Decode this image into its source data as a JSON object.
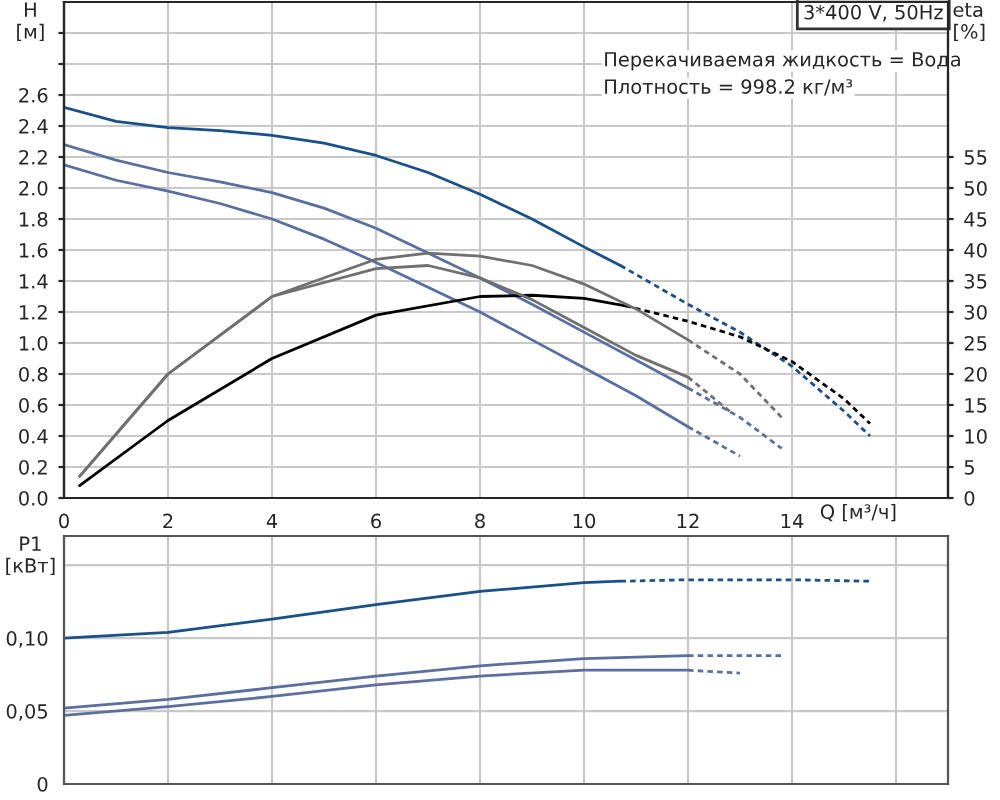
{
  "chart_data": [
    {
      "type": "line",
      "title": "3*400 V, 50Hz",
      "xlabel": "Q [м³/ч]",
      "ylabel": "H\n[м]",
      "y2label": "eta\n[%]",
      "annotations": [
        "Перекачиваемая жидкость = Вода",
        "Плотность = 998.2 кг/м³"
      ],
      "xlim": [
        0,
        17
      ],
      "xticks": [
        0,
        2,
        4,
        6,
        8,
        10,
        12,
        14,
        {
          "value": 16,
          "label": null
        }
      ],
      "ylim": [
        0,
        3.2
      ],
      "yticks": [
        {
          "value": 0,
          "label": "0.0"
        },
        0.2,
        0.4,
        0.6,
        0.8,
        {
          "value": 1,
          "label": "1.0"
        },
        1.2,
        1.4,
        1.6,
        1.8,
        {
          "value": 2,
          "label": "2.0"
        },
        2.2,
        2.4,
        2.6,
        {
          "value": 2.8,
          "label": null
        },
        {
          "value": 3,
          "label": null
        }
      ],
      "y2lim": [
        0,
        80
      ],
      "y2ticks": [
        0,
        5,
        10,
        15,
        20,
        25,
        30,
        35,
        40,
        45,
        50,
        55
      ],
      "grid": true,
      "series": [
        {
          "color": "#1a4f8a",
          "line_style": "solid",
          "x": [
            0,
            1,
            2,
            3,
            4,
            5,
            6,
            7,
            8,
            9,
            10,
            10.7
          ],
          "values": [
            2.52,
            2.43,
            2.39,
            2.37,
            2.34,
            2.29,
            2.21,
            2.1,
            1.96,
            1.8,
            1.62,
            1.5
          ]
        },
        {
          "color": "#1a4f8a",
          "line_style": "dotted",
          "x": [
            10.7,
            12,
            13,
            14,
            15,
            15.5
          ],
          "values": [
            1.5,
            1.25,
            1.07,
            0.85,
            0.56,
            0.4
          ]
        },
        {
          "color": "#5a6fa0",
          "line_style": "solid",
          "x": [
            0,
            1,
            2,
            3,
            4,
            5,
            6,
            7,
            8,
            9,
            10,
            11,
            12
          ],
          "values": [
            2.28,
            2.18,
            2.1,
            2.04,
            1.97,
            1.87,
            1.74,
            1.58,
            1.42,
            1.25,
            1.07,
            0.89,
            0.71
          ]
        },
        {
          "color": "#5a6fa0",
          "line_style": "dotted",
          "x": [
            12,
            13,
            13.8
          ],
          "values": [
            0.71,
            0.52,
            0.32
          ]
        },
        {
          "color": "#5a6fa0",
          "line_style": "solid",
          "x": [
            0,
            1,
            2,
            3,
            4,
            5,
            6,
            7,
            8,
            9,
            10,
            11,
            12
          ],
          "values": [
            2.15,
            2.05,
            1.98,
            1.9,
            1.8,
            1.67,
            1.52,
            1.36,
            1.2,
            1.02,
            0.84,
            0.66,
            0.46
          ]
        },
        {
          "color": "#5a6fa0",
          "line_style": "dotted",
          "x": [
            12,
            13
          ],
          "values": [
            0.46,
            0.27
          ]
        },
        {
          "color": "#000000",
          "axis": "y2",
          "line_style": "solid",
          "x": [
            0.3,
            2,
            4,
            6,
            8,
            9,
            10,
            10.8
          ],
          "values": [
            2,
            12.5,
            22.5,
            29.5,
            32.5,
            32.7,
            32.2,
            31
          ]
        },
        {
          "color": "#000000",
          "axis": "y2",
          "line_style": "dotted",
          "x": [
            10.8,
            12,
            13,
            14,
            15,
            15.5
          ],
          "values": [
            31,
            28.5,
            26,
            22,
            16,
            12
          ]
        },
        {
          "color": "#707070",
          "axis": "y2",
          "line_style": "solid",
          "x": [
            0.3,
            2,
            4,
            6,
            7,
            8,
            9,
            10,
            11,
            12
          ],
          "values": [
            3.5,
            20,
            32.5,
            38.5,
            39.5,
            39,
            37.5,
            34.5,
            30.5,
            25.5
          ]
        },
        {
          "color": "#707070",
          "axis": "y2",
          "line_style": "dotted",
          "x": [
            12,
            13,
            13.8
          ],
          "values": [
            25.5,
            20,
            13
          ]
        },
        {
          "color": "#707070",
          "axis": "y2",
          "line_style": "solid",
          "x": [
            0.3,
            2,
            4,
            6,
            7,
            8,
            9,
            10,
            11,
            12
          ],
          "values": [
            3.5,
            20,
            32.5,
            37,
            37.5,
            35.5,
            32,
            27.5,
            23,
            19.5
          ]
        },
        {
          "color": "#707070",
          "axis": "y2",
          "line_style": "dotted",
          "x": [
            12,
            12.8
          ],
          "values": [
            19.5,
            14
          ]
        }
      ]
    },
    {
      "type": "line",
      "ylabel": "P1\n[кВт]",
      "xlim": [
        0,
        17
      ],
      "xticks": [
        0,
        2,
        4,
        6,
        8,
        10,
        12,
        14,
        16
      ],
      "ylim": [
        0,
        0.17
      ],
      "yticks": [
        0,
        {
          "value": 0.05,
          "label": "0,05"
        },
        {
          "value": 0.1,
          "label": "0,10"
        },
        {
          "value": 0.15,
          "label": null
        }
      ],
      "tick_labels": "y",
      "grid": true,
      "series": [
        {
          "color": "#1a4f8a",
          "line_style": "solid",
          "x": [
            0,
            2,
            4,
            6,
            8,
            10,
            10.7
          ],
          "values": [
            0.1,
            0.104,
            0.113,
            0.123,
            0.132,
            0.138,
            0.139
          ]
        },
        {
          "color": "#1a4f8a",
          "line_style": "dotted",
          "x": [
            10.7,
            12,
            14,
            15.5
          ],
          "values": [
            0.139,
            0.14,
            0.14,
            0.139
          ]
        },
        {
          "color": "#5a6fa0",
          "line_style": "solid",
          "x": [
            0,
            2,
            4,
            6,
            8,
            10,
            12
          ],
          "values": [
            0.052,
            0.058,
            0.066,
            0.074,
            0.081,
            0.086,
            0.088
          ]
        },
        {
          "color": "#5a6fa0",
          "line_style": "dotted",
          "x": [
            12,
            13.8
          ],
          "values": [
            0.088,
            0.088
          ]
        },
        {
          "color": "#5a6fa0",
          "line_style": "solid",
          "x": [
            0,
            2,
            4,
            6,
            8,
            10,
            12
          ],
          "values": [
            0.047,
            0.053,
            0.06,
            0.068,
            0.074,
            0.078,
            0.078
          ]
        },
        {
          "color": "#5a6fa0",
          "line_style": "dotted",
          "x": [
            12,
            13
          ],
          "values": [
            0.078,
            0.076
          ]
        }
      ]
    }
  ]
}
